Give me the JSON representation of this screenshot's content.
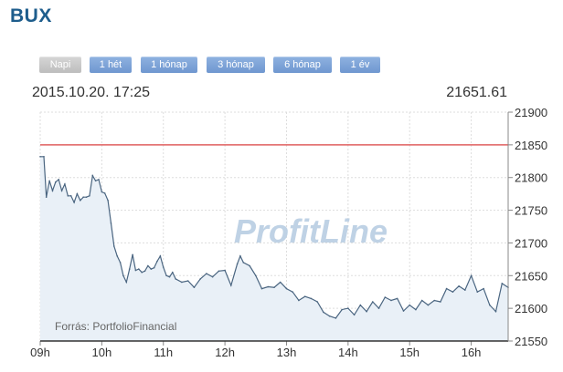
{
  "title": "BUX",
  "tabs": [
    {
      "label": "Napi",
      "active": true
    },
    {
      "label": "1 hét",
      "active": false
    },
    {
      "label": "1 hónap",
      "active": false
    },
    {
      "label": "3 hónap",
      "active": false
    },
    {
      "label": "6 hónap",
      "active": false
    },
    {
      "label": "1 év",
      "active": false
    }
  ],
  "timestamp": "2015.10.20. 17:25",
  "last_value": "21651.61",
  "watermark": "ProfitLine",
  "source": "Forrás: PortfolioFinancial",
  "colors": {
    "line": "#4a6580",
    "area": "#e9f0f7",
    "reference": "#e06060",
    "title": "#1e5d8c"
  },
  "chart_data": {
    "type": "area",
    "x_ticks": [
      "09h",
      "10h",
      "11h",
      "12h",
      "13h",
      "14h",
      "15h",
      "16h"
    ],
    "y_ticks": [
      21550,
      21600,
      21650,
      21700,
      21750,
      21800,
      21850,
      21900
    ],
    "ylim": [
      21550,
      21900
    ],
    "xlim": [
      9.0,
      16.6
    ],
    "grid": true,
    "reference_line": 21850,
    "x": [
      9.0,
      9.06,
      9.1,
      9.15,
      9.2,
      9.25,
      9.3,
      9.35,
      9.4,
      9.45,
      9.5,
      9.55,
      9.6,
      9.65,
      9.7,
      9.75,
      9.8,
      9.85,
      9.9,
      9.95,
      10.0,
      10.05,
      10.1,
      10.15,
      10.2,
      10.25,
      10.3,
      10.35,
      10.4,
      10.45,
      10.5,
      10.55,
      10.6,
      10.65,
      10.7,
      10.75,
      10.8,
      10.85,
      10.9,
      10.95,
      11.0,
      11.05,
      11.1,
      11.15,
      11.2,
      11.3,
      11.4,
      11.5,
      11.6,
      11.7,
      11.8,
      11.9,
      12.0,
      12.1,
      12.2,
      12.25,
      12.3,
      12.4,
      12.5,
      12.6,
      12.7,
      12.8,
      12.9,
      13.0,
      13.1,
      13.2,
      13.3,
      13.4,
      13.5,
      13.6,
      13.7,
      13.8,
      13.9,
      14.0,
      14.1,
      14.2,
      14.3,
      14.4,
      14.5,
      14.6,
      14.7,
      14.8,
      14.9,
      15.0,
      15.1,
      15.2,
      15.3,
      15.4,
      15.5,
      15.6,
      15.7,
      15.8,
      15.9,
      16.0,
      16.1,
      16.2,
      16.3,
      16.4,
      16.5,
      16.6
    ],
    "y": [
      21832,
      21832,
      21770,
      21795,
      21780,
      21793,
      21797,
      21780,
      21790,
      21772,
      21772,
      21762,
      21775,
      21765,
      21770,
      21770,
      21772,
      21803,
      21795,
      21797,
      21778,
      21776,
      21765,
      21730,
      21695,
      21680,
      21670,
      21650,
      21640,
      21660,
      21682,
      21658,
      21660,
      21655,
      21657,
      21665,
      21660,
      21662,
      21672,
      21680,
      21663,
      21650,
      21648,
      21655,
      21645,
      21640,
      21642,
      21632,
      21645,
      21653,
      21648,
      21657,
      21658,
      21635,
      21668,
      21680,
      21670,
      21665,
      21650,
      21630,
      21633,
      21632,
      21640,
      21630,
      21625,
      21612,
      21618,
      21615,
      21610,
      21594,
      21588,
      21585,
      21598,
      21600,
      21590,
      21605,
      21595,
      21610,
      21600,
      21617,
      21612,
      21615,
      21596,
      21605,
      21598,
      21612,
      21605,
      21612,
      21610,
      21630,
      21625,
      21634,
      21628,
      21650,
      21625,
      21630,
      21605,
      21595,
      21638,
      21632
    ]
  }
}
